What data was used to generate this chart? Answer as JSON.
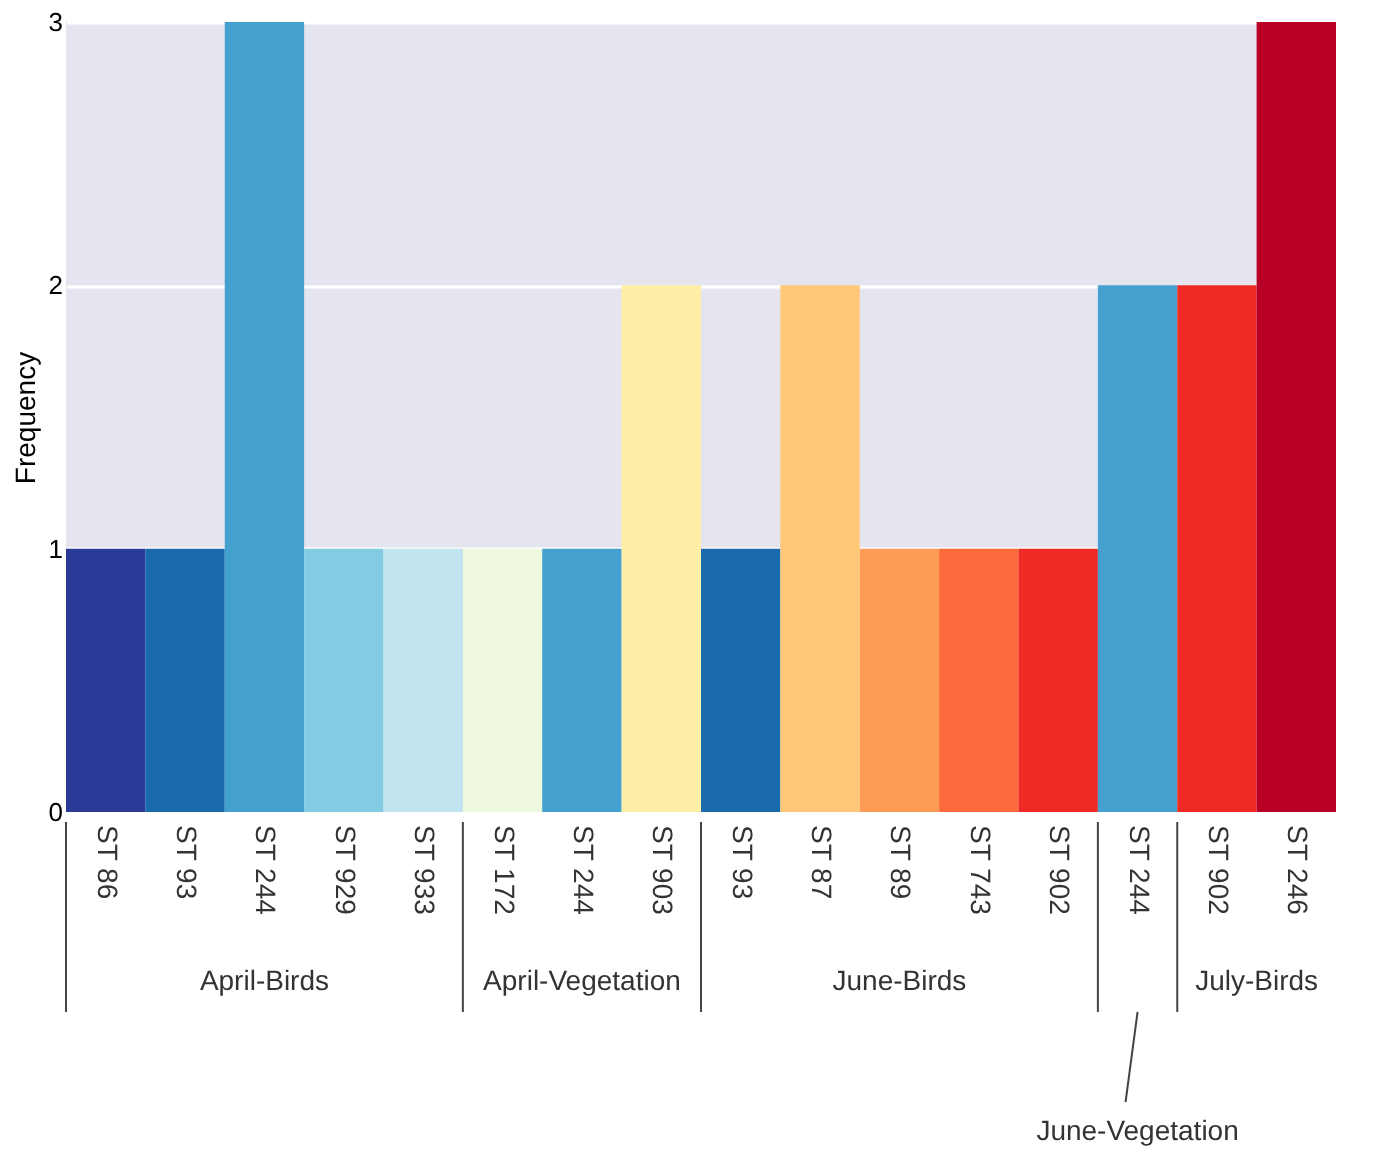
{
  "chart_data": {
    "type": "bar",
    "ylabel": "Frequency",
    "categories": [
      "ST 86",
      "ST 93",
      "ST 244",
      "ST 929",
      "ST 933",
      "ST 172",
      "ST 244",
      "ST 903",
      "ST 93",
      "ST 87",
      "ST 89",
      "ST 743",
      "ST 902",
      "ST 244",
      "ST 902",
      "ST 246"
    ],
    "values": [
      1,
      1,
      3,
      1,
      1,
      1,
      1,
      2,
      1,
      2,
      1,
      1,
      1,
      2,
      2,
      3
    ],
    "colors": [
      "#2b3a97",
      "#1a6aad",
      "#43a0cf",
      "#82cde3",
      "#c0e5f0",
      "#eef8dc",
      "#43a0cf",
      "#feeea6",
      "#1a6aad",
      "#fec878",
      "#fd9a54",
      "#fb6a3a",
      "#ee2a24",
      "#43a0cf",
      "#ee2a24",
      "#b90025"
    ],
    "ylim": [
      0,
      3
    ],
    "yticks": [
      0,
      1,
      2,
      3
    ],
    "grid": "y",
    "annotations": [
      "April-Birds",
      "April-Vegetation",
      "June-Birds",
      "June-Vegetation",
      "July-Birds"
    ]
  }
}
